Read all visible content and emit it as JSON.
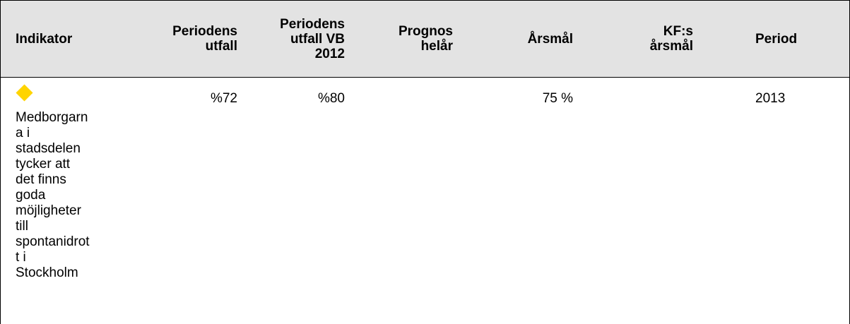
{
  "table": {
    "headers": [
      "Indikator",
      "Periodens utfall",
      "Periodens utfall VB 2012",
      "Prognos helår",
      "Årsmål",
      "KF:s årsmål",
      "Period"
    ],
    "rows": [
      [
        "Medborgarna i stadsdelen tycker att det finns goda möjligheter till spontanidrott i Stockholm",
        "%72",
        "%80",
        null,
        "75 %",
        null,
        "2013"
      ]
    ]
  }
}
